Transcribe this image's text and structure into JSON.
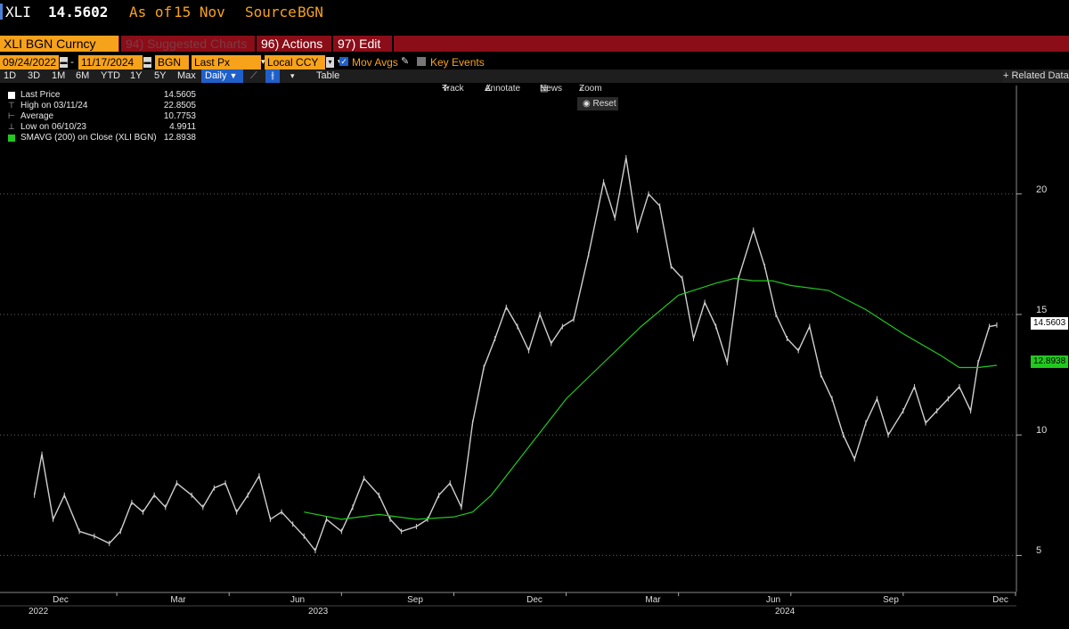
{
  "header": {
    "ticker": "XLI",
    "price": "14.5602",
    "as_of_label": "As of",
    "as_of_date": "15 Nov",
    "source_label": "Source",
    "source": "BGN"
  },
  "command_bar": {
    "security": "XLI BGN Curncy",
    "suggested": "94) Suggested Charts",
    "actions": "96) Actions",
    "edit": "97) Edit"
  },
  "params": {
    "start_date": "09/24/2022",
    "date_sep": "-",
    "end_date": "11/17/2024",
    "source": "BGN",
    "field": "Last Px",
    "currency": "Local CCY",
    "mov_avgs": "Mov Avgs",
    "key_events": "Key Events"
  },
  "periods": {
    "items": [
      "1D",
      "3D",
      "1M",
      "6M",
      "YTD",
      "1Y",
      "5Y",
      "Max"
    ],
    "frequency": "Daily",
    "table": "Table",
    "related": "+ Related Data"
  },
  "toolbar": {
    "track": "Track",
    "annotate": "Annotate",
    "news": "News",
    "zoom": "Zoom",
    "reset": "Reset"
  },
  "legend": [
    {
      "label": "Last Price",
      "value": "14.5605"
    },
    {
      "label": "High on 03/11/24",
      "value": "22.8505"
    },
    {
      "label": "Average",
      "value": "10.7753"
    },
    {
      "label": "Low on 06/10/23",
      "value": "4.9911"
    },
    {
      "label": "SMAVG (200)  on Close (XLI BGN)",
      "value": "12.8938"
    }
  ],
  "colors": {
    "price": "#cfcfcf",
    "sma": "#22c81e",
    "last_tag": "#ffffff",
    "sma_tag": "#22c81e",
    "accent": "#f7a21b",
    "bar": "#8b0d18"
  },
  "chart_data": {
    "type": "line",
    "y_axis_ticks": [
      "5",
      "10",
      "15",
      "20"
    ],
    "ylim": [
      3.5,
      24.5
    ],
    "x_axis_ticks": [
      "Dec",
      "Mar",
      "Jun",
      "Sep",
      "Dec",
      "Mar",
      "Jun",
      "Sep",
      "Dec"
    ],
    "x_axis_years": [
      "2022",
      "2023",
      "2024"
    ],
    "last_value_tag": "14.5603",
    "sma_value_tag": "12.8938",
    "x_unit": "months since 2022-09-01",
    "series": [
      {
        "name": "Last Price",
        "x": [
          0.8,
          1.0,
          1.3,
          1.6,
          2.0,
          2.4,
          2.8,
          3.1,
          3.4,
          3.7,
          4.0,
          4.3,
          4.6,
          5.0,
          5.3,
          5.6,
          5.9,
          6.2,
          6.5,
          6.8,
          7.1,
          7.4,
          7.7,
          8.0,
          8.3,
          8.6,
          9.0,
          9.3,
          9.6,
          10.0,
          10.3,
          10.6,
          11.0,
          11.3,
          11.6,
          11.9,
          12.2,
          12.5,
          12.8,
          13.1,
          13.4,
          13.7,
          14.0,
          14.3,
          14.6,
          14.9,
          15.2,
          15.6,
          16.0,
          16.3,
          16.6,
          16.9,
          17.2,
          17.5,
          17.8,
          18.1,
          18.4,
          18.7,
          19.0,
          19.3,
          19.6,
          20.0,
          20.3,
          20.6,
          20.9,
          21.2,
          21.5,
          21.8,
          22.1,
          22.4,
          22.7,
          23.0,
          23.3,
          23.6,
          24.0,
          24.3,
          24.6,
          24.9,
          25.2,
          25.5,
          25.8,
          26.0,
          26.3,
          26.5
        ],
        "y": [
          7.5,
          9.2,
          6.5,
          7.5,
          6.0,
          5.8,
          5.5,
          6.0,
          7.2,
          6.8,
          7.5,
          7.0,
          8.0,
          7.5,
          7.0,
          7.8,
          8.0,
          6.8,
          7.5,
          8.3,
          6.5,
          6.8,
          6.3,
          5.8,
          5.2,
          6.5,
          6.0,
          7.0,
          8.2,
          7.5,
          6.5,
          6.0,
          6.2,
          6.5,
          7.5,
          8.0,
          7.0,
          10.5,
          12.8,
          14.0,
          15.3,
          14.5,
          13.5,
          15.0,
          13.8,
          14.5,
          14.8,
          17.5,
          20.5,
          19.0,
          21.5,
          18.5,
          20.0,
          19.5,
          17.0,
          16.5,
          14.0,
          15.5,
          14.5,
          13.0,
          16.5,
          18.5,
          17.0,
          15.0,
          14.0,
          13.5,
          14.5,
          12.5,
          11.5,
          10.0,
          9.0,
          10.5,
          11.5,
          10.0,
          11.0,
          12.0,
          10.5,
          11.0,
          11.5,
          12.0,
          11.0,
          13.0,
          14.5,
          14.56
        ]
      },
      {
        "name": "SMAVG (200)",
        "x": [
          8.0,
          9.0,
          10.0,
          11.0,
          12.0,
          12.5,
          13.0,
          14.0,
          15.0,
          16.0,
          17.0,
          18.0,
          19.0,
          19.5,
          20.0,
          20.5,
          21.0,
          22.0,
          23.0,
          24.0,
          25.0,
          25.5,
          26.0,
          26.5
        ],
        "y": [
          6.8,
          6.5,
          6.7,
          6.5,
          6.6,
          6.8,
          7.5,
          9.5,
          11.5,
          13.0,
          14.5,
          15.8,
          16.3,
          16.5,
          16.4,
          16.4,
          16.2,
          16.0,
          15.2,
          14.2,
          13.3,
          12.8,
          12.8,
          12.89
        ]
      }
    ]
  }
}
